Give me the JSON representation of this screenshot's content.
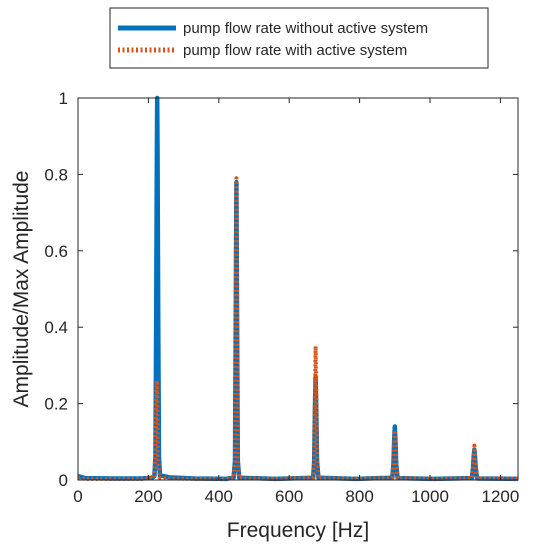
{
  "chart_data": {
    "type": "line",
    "xlabel": "Frequency [Hz]",
    "ylabel": "Amplitude/Max Amplitude",
    "xlim": [
      0,
      1250
    ],
    "ylim": [
      0,
      1
    ],
    "xticks": [
      0,
      200,
      400,
      600,
      800,
      1000,
      1200
    ],
    "yticks": [
      0,
      0.2,
      0.4,
      0.6,
      0.8,
      1
    ],
    "ytick_labels": [
      "0",
      "0.2",
      "0.4",
      "0.6",
      "0.8",
      "1"
    ],
    "grid": false,
    "legend_position": "top, outside plot",
    "series": [
      {
        "name": "pump flow rate without active system",
        "color": "#0072BD",
        "style": "solid",
        "points": [
          [
            0,
            0.01
          ],
          [
            20,
            0.005
          ],
          [
            100,
            0.004
          ],
          [
            180,
            0.004
          ],
          [
            210,
            0.006
          ],
          [
            217,
            0.01
          ],
          [
            220,
            0.06
          ],
          [
            222,
            0.4
          ],
          [
            224,
            0.85
          ],
          [
            225,
            1.0
          ],
          [
            226,
            0.85
          ],
          [
            228,
            0.4
          ],
          [
            230,
            0.06
          ],
          [
            233,
            0.012
          ],
          [
            260,
            0.007
          ],
          [
            330,
            0.004
          ],
          [
            420,
            0.003
          ],
          [
            442,
            0.006
          ],
          [
            446,
            0.05
          ],
          [
            448,
            0.4
          ],
          [
            450,
            0.78
          ],
          [
            452,
            0.4
          ],
          [
            454,
            0.05
          ],
          [
            458,
            0.006
          ],
          [
            560,
            0.003
          ],
          [
            668,
            0.006
          ],
          [
            671,
            0.05
          ],
          [
            673,
            0.18
          ],
          [
            675,
            0.27
          ],
          [
            677,
            0.18
          ],
          [
            679,
            0.05
          ],
          [
            683,
            0.006
          ],
          [
            790,
            0.003
          ],
          [
            893,
            0.006
          ],
          [
            896,
            0.04
          ],
          [
            898,
            0.1
          ],
          [
            900,
            0.14
          ],
          [
            902,
            0.1
          ],
          [
            904,
            0.04
          ],
          [
            908,
            0.005
          ],
          [
            1010,
            0.003
          ],
          [
            1119,
            0.005
          ],
          [
            1122,
            0.03
          ],
          [
            1124,
            0.06
          ],
          [
            1126,
            0.08
          ],
          [
            1128,
            0.06
          ],
          [
            1130,
            0.03
          ],
          [
            1134,
            0.004
          ],
          [
            1250,
            0.003
          ]
        ]
      },
      {
        "name": "pump flow rate with active system",
        "color": "#D95319",
        "style": "dotted",
        "points": [
          [
            0,
            0.006
          ],
          [
            20,
            0.003
          ],
          [
            100,
            0.003
          ],
          [
            180,
            0.003
          ],
          [
            215,
            0.005
          ],
          [
            220,
            0.05
          ],
          [
            222,
            0.2
          ],
          [
            224,
            0.26
          ],
          [
            226,
            0.2
          ],
          [
            228,
            0.05
          ],
          [
            232,
            0.006
          ],
          [
            260,
            0.004
          ],
          [
            330,
            0.003
          ],
          [
            420,
            0.003
          ],
          [
            442,
            0.005
          ],
          [
            446,
            0.05
          ],
          [
            448,
            0.4
          ],
          [
            450,
            0.79
          ],
          [
            452,
            0.4
          ],
          [
            454,
            0.05
          ],
          [
            458,
            0.005
          ],
          [
            560,
            0.003
          ],
          [
            668,
            0.006
          ],
          [
            671,
            0.06
          ],
          [
            673,
            0.22
          ],
          [
            675,
            0.35
          ],
          [
            677,
            0.22
          ],
          [
            679,
            0.06
          ],
          [
            683,
            0.005
          ],
          [
            790,
            0.003
          ],
          [
            893,
            0.006
          ],
          [
            896,
            0.04
          ],
          [
            898,
            0.09
          ],
          [
            900,
            0.13
          ],
          [
            902,
            0.09
          ],
          [
            904,
            0.04
          ],
          [
            908,
            0.005
          ],
          [
            1010,
            0.003
          ],
          [
            1119,
            0.005
          ],
          [
            1122,
            0.03
          ],
          [
            1124,
            0.06
          ],
          [
            1126,
            0.09
          ],
          [
            1128,
            0.06
          ],
          [
            1130,
            0.03
          ],
          [
            1134,
            0.004
          ],
          [
            1250,
            0.003
          ]
        ]
      }
    ]
  }
}
